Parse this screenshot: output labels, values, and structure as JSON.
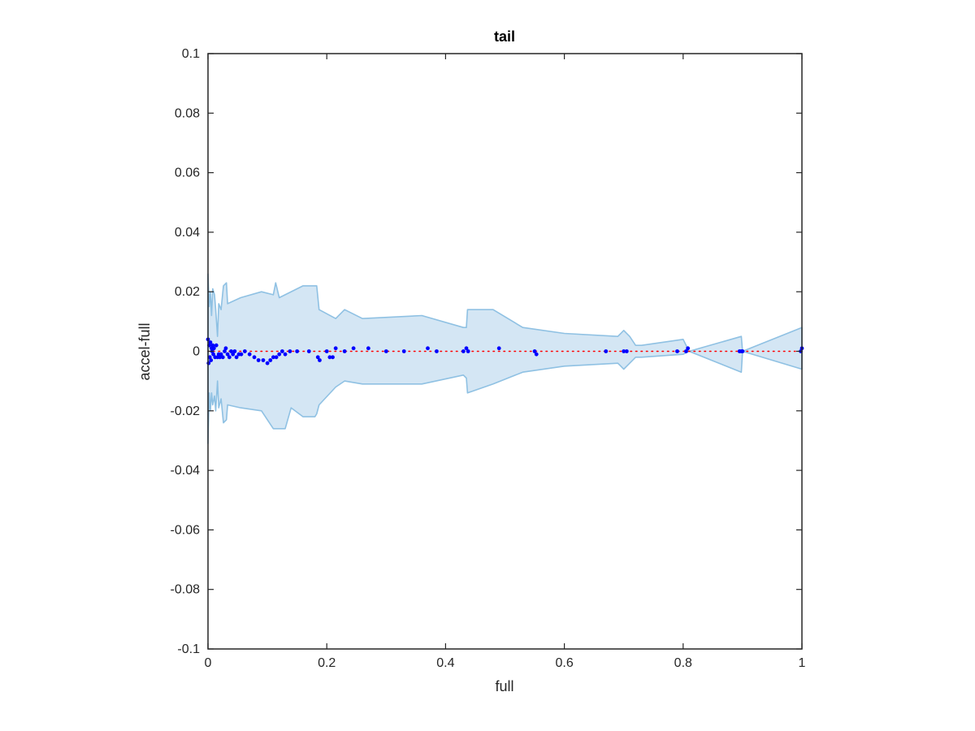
{
  "chart_data": {
    "type": "scatter",
    "title": "tail",
    "xlabel": "full",
    "ylabel": "accel-full",
    "xlim": [
      0,
      1
    ],
    "ylim": [
      -0.1,
      0.1
    ],
    "x_ticks": [
      0,
      0.2,
      0.4,
      0.6,
      0.8,
      1
    ],
    "x_tick_labels": [
      "0",
      "0.2",
      "0.4",
      "0.6",
      "0.8",
      "1"
    ],
    "y_ticks": [
      -0.1,
      -0.08,
      -0.06,
      -0.04,
      -0.02,
      0,
      0.02,
      0.04,
      0.06,
      0.08,
      0.1
    ],
    "y_tick_labels": [
      "-0.1",
      "-0.08",
      "-0.06",
      "-0.04",
      "-0.02",
      "0",
      "0.02",
      "0.04",
      "0.06",
      "0.08",
      "0.1"
    ],
    "grid": false,
    "colors": {
      "points": "#0000ff",
      "band_fill": "#d4e6f4",
      "band_edge": "#8fc1e3",
      "reference_line": "#ff0000",
      "axes": "#262626"
    },
    "reference_line": {
      "y": 0,
      "style": "dotted"
    },
    "band_upper": [
      [
        0,
        0.026
      ],
      [
        0.002,
        0.015
      ],
      [
        0.004,
        0.02
      ],
      [
        0.006,
        0.012
      ],
      [
        0.008,
        0.021
      ],
      [
        0.011,
        0.019
      ],
      [
        0.013,
        0.014
      ],
      [
        0.016,
        0.005
      ],
      [
        0.018,
        0.016
      ],
      [
        0.022,
        0.014
      ],
      [
        0.026,
        0.022
      ],
      [
        0.031,
        0.023
      ],
      [
        0.033,
        0.016
      ],
      [
        0.055,
        0.018
      ],
      [
        0.09,
        0.02
      ],
      [
        0.11,
        0.019
      ],
      [
        0.114,
        0.023
      ],
      [
        0.12,
        0.018
      ],
      [
        0.16,
        0.022
      ],
      [
        0.18,
        0.022
      ],
      [
        0.183,
        0.022
      ],
      [
        0.187,
        0.014
      ],
      [
        0.215,
        0.011
      ],
      [
        0.23,
        0.014
      ],
      [
        0.26,
        0.011
      ],
      [
        0.36,
        0.012
      ],
      [
        0.43,
        0.008
      ],
      [
        0.435,
        0.008
      ],
      [
        0.437,
        0.014
      ],
      [
        0.48,
        0.014
      ],
      [
        0.53,
        0.008
      ],
      [
        0.6,
        0.006
      ],
      [
        0.69,
        0.005
      ],
      [
        0.7,
        0.007
      ],
      [
        0.71,
        0.005
      ],
      [
        0.72,
        0.002
      ],
      [
        0.73,
        0.002
      ],
      [
        0.8,
        0.004
      ],
      [
        0.81,
        0.0
      ],
      [
        0.898,
        0.005
      ],
      [
        0.9,
        0.0
      ],
      [
        1.0,
        0.008
      ]
    ],
    "band_lower": [
      [
        0,
        -0.031
      ],
      [
        0.002,
        -0.014
      ],
      [
        0.004,
        -0.02
      ],
      [
        0.006,
        -0.014
      ],
      [
        0.008,
        -0.018
      ],
      [
        0.011,
        -0.015
      ],
      [
        0.013,
        -0.02
      ],
      [
        0.016,
        -0.01
      ],
      [
        0.018,
        -0.019
      ],
      [
        0.022,
        -0.016
      ],
      [
        0.026,
        -0.024
      ],
      [
        0.031,
        -0.023
      ],
      [
        0.033,
        -0.018
      ],
      [
        0.055,
        -0.019
      ],
      [
        0.09,
        -0.02
      ],
      [
        0.1,
        -0.023
      ],
      [
        0.11,
        -0.026
      ],
      [
        0.13,
        -0.026
      ],
      [
        0.14,
        -0.019
      ],
      [
        0.16,
        -0.022
      ],
      [
        0.18,
        -0.022
      ],
      [
        0.183,
        -0.021
      ],
      [
        0.187,
        -0.018
      ],
      [
        0.215,
        -0.012
      ],
      [
        0.23,
        -0.01
      ],
      [
        0.26,
        -0.011
      ],
      [
        0.36,
        -0.011
      ],
      [
        0.43,
        -0.008
      ],
      [
        0.435,
        -0.009
      ],
      [
        0.437,
        -0.014
      ],
      [
        0.48,
        -0.011
      ],
      [
        0.53,
        -0.007
      ],
      [
        0.6,
        -0.005
      ],
      [
        0.69,
        -0.004
      ],
      [
        0.7,
        -0.006
      ],
      [
        0.71,
        -0.004
      ],
      [
        0.72,
        -0.002
      ],
      [
        0.73,
        -0.002
      ],
      [
        0.8,
        -0.001
      ],
      [
        0.81,
        0.0
      ],
      [
        0.898,
        -0.007
      ],
      [
        0.9,
        0.0
      ],
      [
        1.0,
        -0.006
      ]
    ],
    "points": [
      [
        0.0,
        0.004
      ],
      [
        0.001,
        -0.004
      ],
      [
        0.002,
        0.002
      ],
      [
        0.003,
        -0.002
      ],
      [
        0.004,
        0.003
      ],
      [
        0.005,
        -0.003
      ],
      [
        0.006,
        0.001
      ],
      [
        0.007,
        0.0
      ],
      [
        0.008,
        0.002
      ],
      [
        0.009,
        -0.001
      ],
      [
        0.01,
        0.001
      ],
      [
        0.012,
        -0.002
      ],
      [
        0.014,
        0.002
      ],
      [
        0.016,
        -0.002
      ],
      [
        0.018,
        -0.001
      ],
      [
        0.02,
        -0.002
      ],
      [
        0.022,
        -0.001
      ],
      [
        0.025,
        -0.002
      ],
      [
        0.028,
        0.0
      ],
      [
        0.03,
        0.001
      ],
      [
        0.033,
        -0.001
      ],
      [
        0.036,
        -0.002
      ],
      [
        0.039,
        0.0
      ],
      [
        0.042,
        -0.001
      ],
      [
        0.045,
        0.0
      ],
      [
        0.048,
        -0.002
      ],
      [
        0.052,
        -0.001
      ],
      [
        0.056,
        -0.001
      ],
      [
        0.062,
        0.0
      ],
      [
        0.07,
        -0.001
      ],
      [
        0.078,
        -0.002
      ],
      [
        0.085,
        -0.003
      ],
      [
        0.093,
        -0.003
      ],
      [
        0.1,
        -0.004
      ],
      [
        0.105,
        -0.003
      ],
      [
        0.11,
        -0.002
      ],
      [
        0.115,
        -0.002
      ],
      [
        0.12,
        -0.001
      ],
      [
        0.125,
        0.0
      ],
      [
        0.13,
        -0.001
      ],
      [
        0.138,
        0.0
      ],
      [
        0.15,
        0.0
      ],
      [
        0.17,
        0.0
      ],
      [
        0.185,
        -0.002
      ],
      [
        0.188,
        -0.003
      ],
      [
        0.2,
        0.0
      ],
      [
        0.205,
        -0.002
      ],
      [
        0.21,
        -0.002
      ],
      [
        0.215,
        0.001
      ],
      [
        0.23,
        0.0
      ],
      [
        0.245,
        0.001
      ],
      [
        0.27,
        0.001
      ],
      [
        0.3,
        0.0
      ],
      [
        0.33,
        0.0
      ],
      [
        0.37,
        0.001
      ],
      [
        0.385,
        0.0
      ],
      [
        0.43,
        0.0
      ],
      [
        0.435,
        0.001
      ],
      [
        0.438,
        0.0
      ],
      [
        0.49,
        0.001
      ],
      [
        0.55,
        0.0
      ],
      [
        0.553,
        -0.001
      ],
      [
        0.67,
        0.0
      ],
      [
        0.7,
        0.0
      ],
      [
        0.705,
        0.0
      ],
      [
        0.79,
        0.0
      ],
      [
        0.805,
        0.0
      ],
      [
        0.808,
        0.001
      ],
      [
        0.895,
        0.0
      ],
      [
        0.898,
        0.0
      ],
      [
        0.9,
        0.0
      ],
      [
        0.998,
        0.0
      ],
      [
        1.0,
        0.001
      ]
    ]
  }
}
